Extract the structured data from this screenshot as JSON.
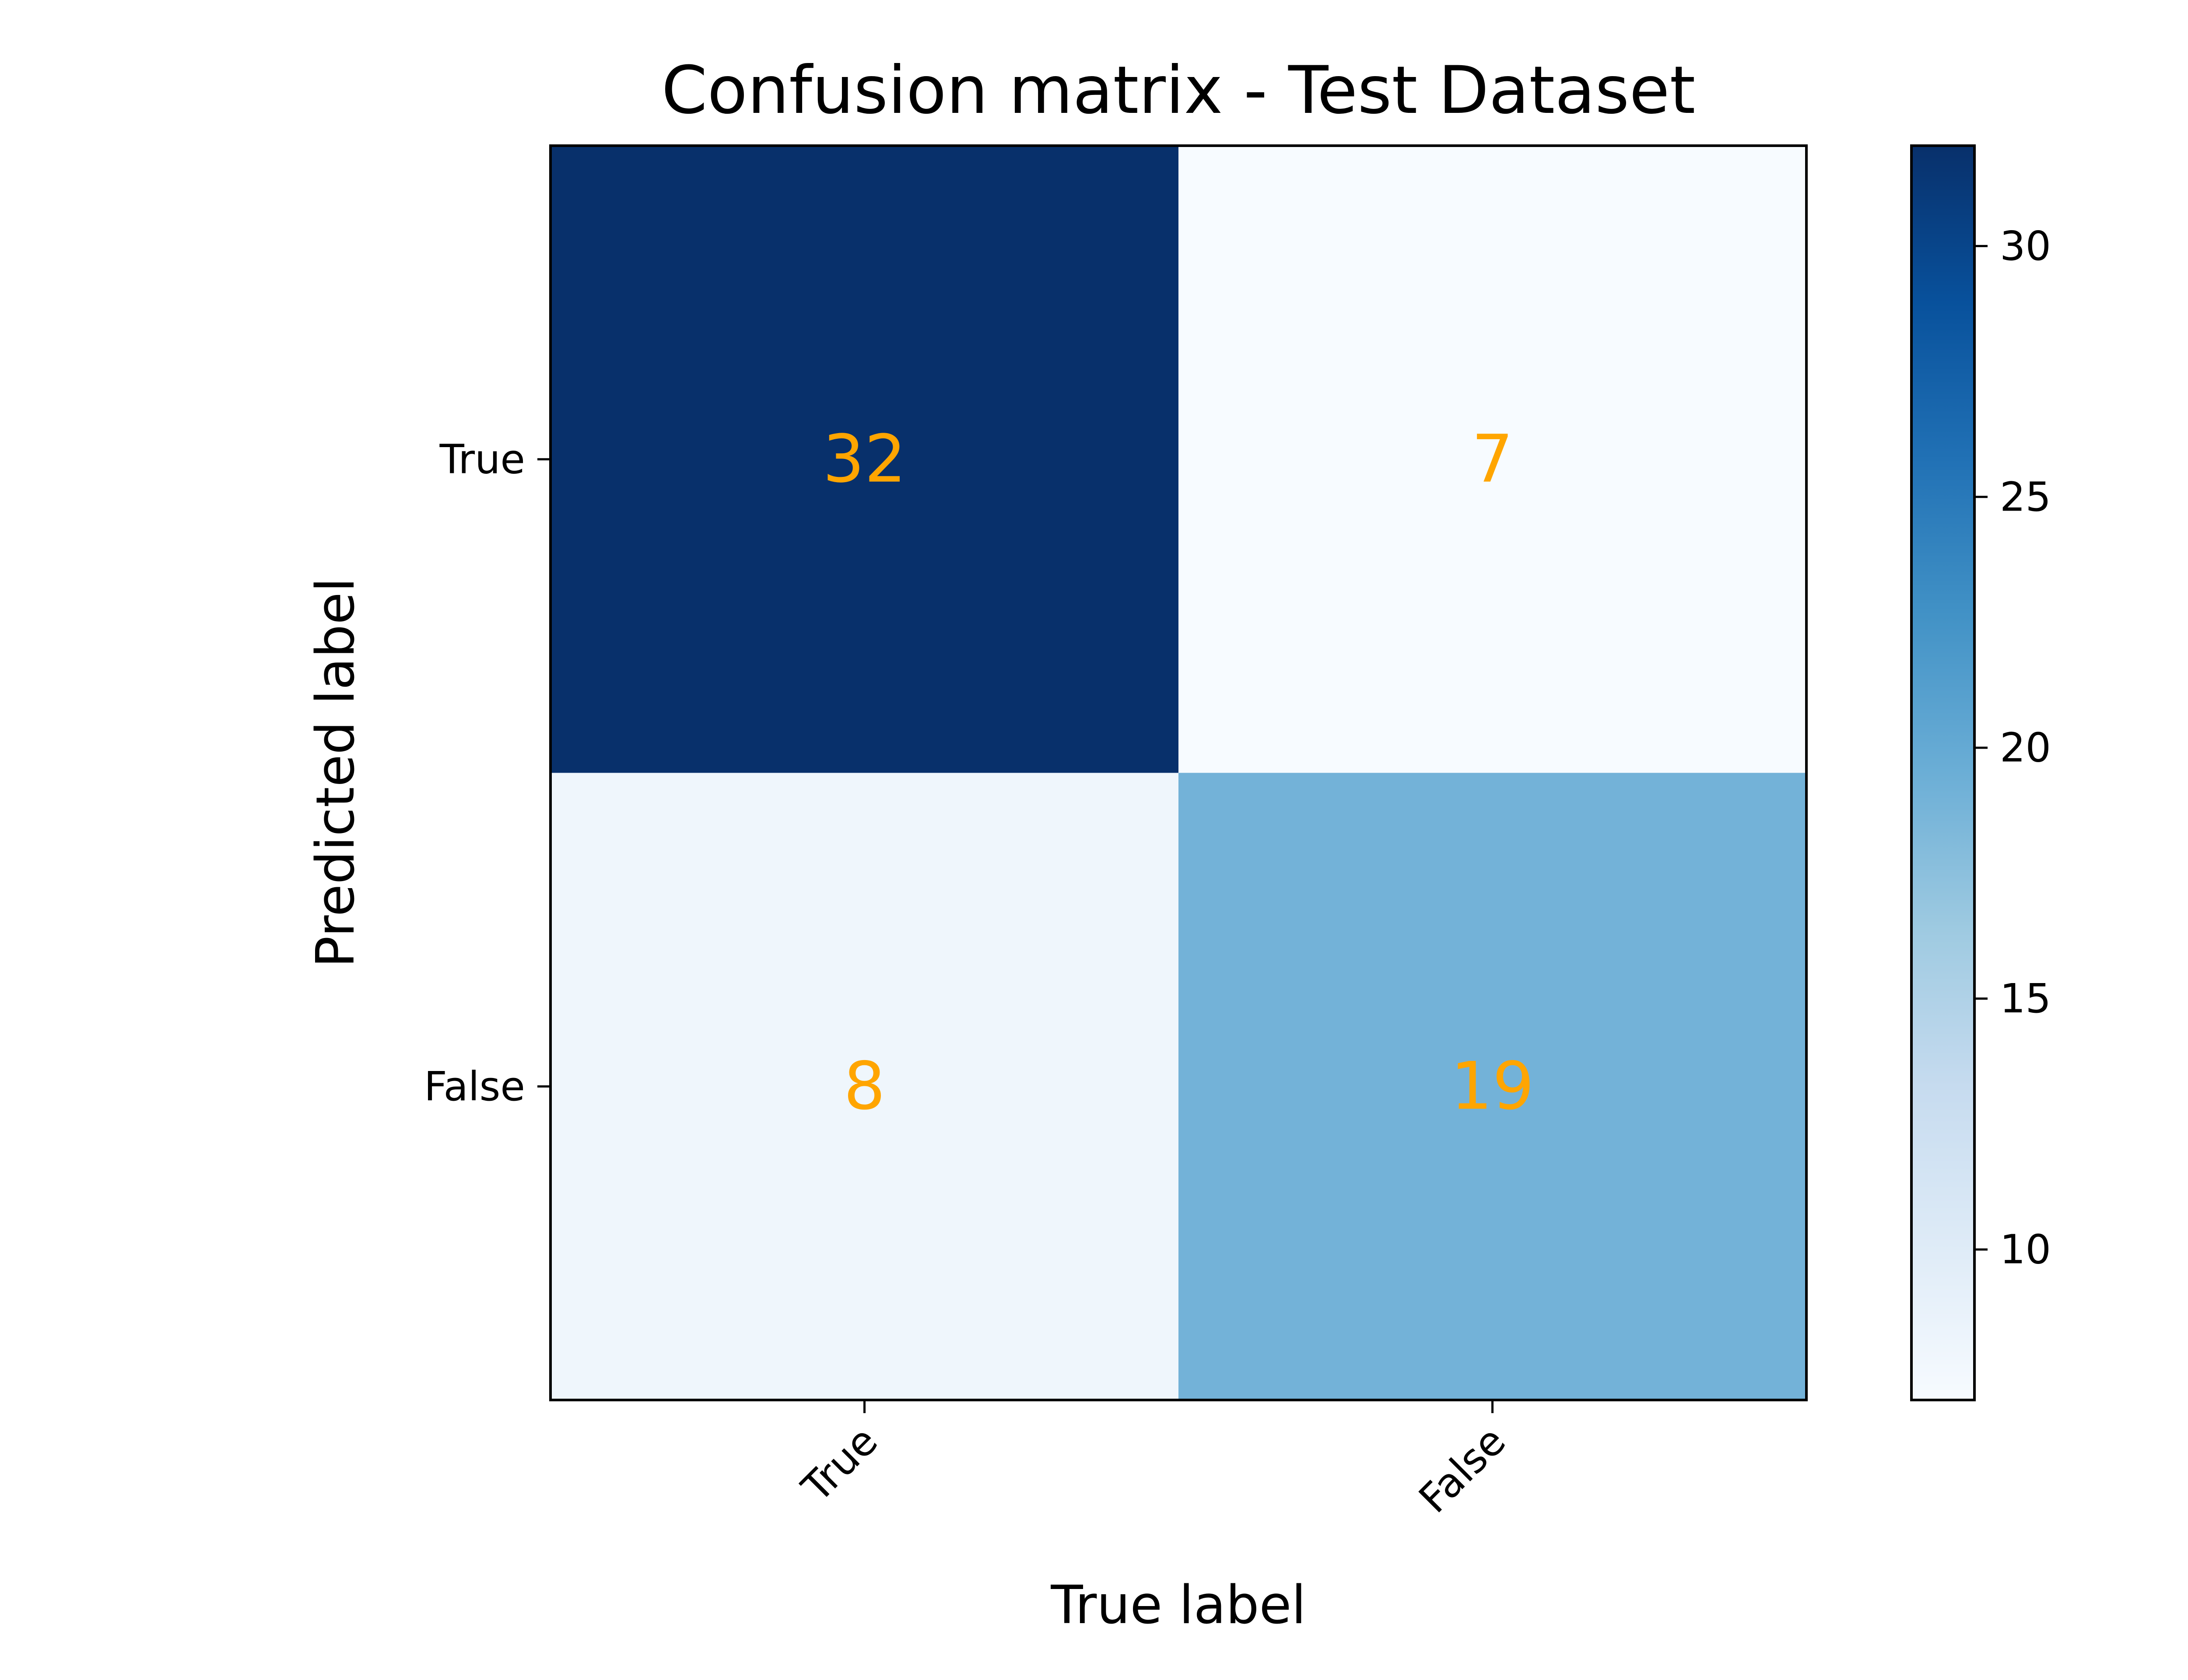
{
  "chart_data": {
    "type": "heatmap",
    "title": "Confusion matrix - Test Dataset",
    "xlabel": "True label",
    "ylabel": "Predicted label",
    "x_categories": [
      "True",
      "False"
    ],
    "y_categories": [
      "True",
      "False"
    ],
    "values": [
      [
        32,
        7
      ],
      [
        8,
        19
      ]
    ],
    "colormap": "Blues",
    "annotation_color": "#ffa500",
    "colorbar": {
      "vmin": 7,
      "vmax": 32,
      "ticks": [
        10,
        15,
        20,
        25,
        30
      ],
      "tick_labels": [
        "10",
        "15",
        "20",
        "25",
        "30"
      ]
    },
    "grid": false
  }
}
